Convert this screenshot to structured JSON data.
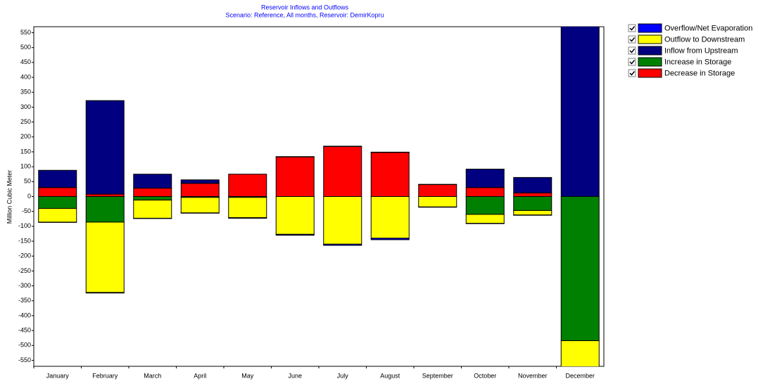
{
  "chart_data": {
    "type": "bar",
    "stacked": true,
    "title": "Reservoir Inflows and Outflows",
    "subtitle": "Scenario: Reference,  All months,  Reservoir: DemirKopru",
    "y_label": "Million Cubic Meter",
    "categories": [
      "January",
      "February",
      "March",
      "April",
      "May",
      "June",
      "July",
      "August",
      "September",
      "October",
      "November",
      "December"
    ],
    "series": [
      {
        "name": "Overflow/Net Evaporation",
        "color": "#0000ff",
        "values": [
          -1,
          -2,
          -1,
          -1,
          -2,
          -3,
          -4,
          -5,
          -1,
          -1,
          -1,
          -2
        ]
      },
      {
        "name": "Outflow to Downstream",
        "color": "#ffff00",
        "values": [
          -46,
          -236,
          -61,
          -52,
          -68,
          -127,
          -160,
          -140,
          -35,
          -30,
          -15,
          -100
        ]
      },
      {
        "name": "Inflow from Upstream",
        "color": "#000080",
        "values": [
          58,
          314,
          47,
          12,
          0,
          1,
          1,
          1,
          1,
          62,
          52,
          600
        ]
      },
      {
        "name": "Increase in Storage",
        "color": "#008000",
        "values": [
          -40,
          -86,
          -12,
          -3,
          -3,
          0,
          0,
          0,
          0,
          -60,
          -47,
          -484
        ]
      },
      {
        "name": "Decrease in Storage",
        "color": "#ff0000",
        "values": [
          30,
          8,
          28,
          44,
          75,
          133,
          168,
          148,
          40,
          30,
          12,
          0
        ]
      }
    ],
    "ylim": [
      -570,
      570
    ],
    "yticks": [
      -550,
      -500,
      -450,
      -400,
      -350,
      -300,
      -250,
      -200,
      -150,
      -100,
      -50,
      0,
      50,
      100,
      150,
      200,
      250,
      300,
      350,
      400,
      450,
      500,
      550
    ],
    "legend": "right"
  }
}
